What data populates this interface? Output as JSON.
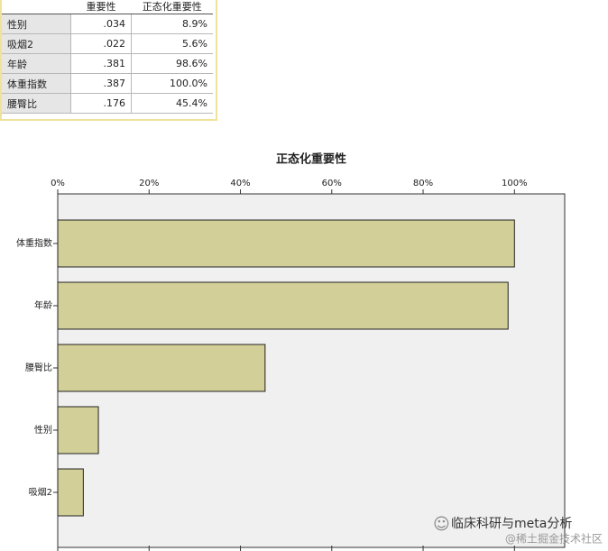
{
  "table": {
    "header": [
      "重要性",
      "正态化重要性"
    ],
    "rows": [
      [
        "性别",
        ".034",
        "8.9%"
      ],
      [
        "吸烟2",
        ".022",
        "5.6%"
      ],
      [
        "年龄",
        ".381",
        "98.6%"
      ],
      [
        "体重指数",
        ".387",
        "100.0%"
      ],
      [
        "腰臀比",
        ".176",
        "45.4%"
      ]
    ]
  },
  "chart_data": {
    "type": "bar",
    "orientation": "horizontal",
    "title": "正态化重要性",
    "categories": [
      "体重指数",
      "年龄",
      "腰臀比",
      "性别",
      "吸烟2"
    ],
    "values": [
      100.0,
      98.6,
      45.4,
      8.9,
      5.6
    ],
    "color": "#d3cf98",
    "xlim": [
      0,
      111
    ],
    "xticks": [
      {
        "value": 0,
        "label": "0%"
      },
      {
        "value": 20,
        "label": "20%"
      },
      {
        "value": 40,
        "label": "40%"
      },
      {
        "value": 60,
        "label": "60%"
      },
      {
        "value": 80,
        "label": "80%"
      },
      {
        "value": 100,
        "label": "100%"
      }
    ]
  },
  "watermark": {
    "channel": "临床科研与meta分析",
    "site": "@稀土掘金技术社区"
  }
}
